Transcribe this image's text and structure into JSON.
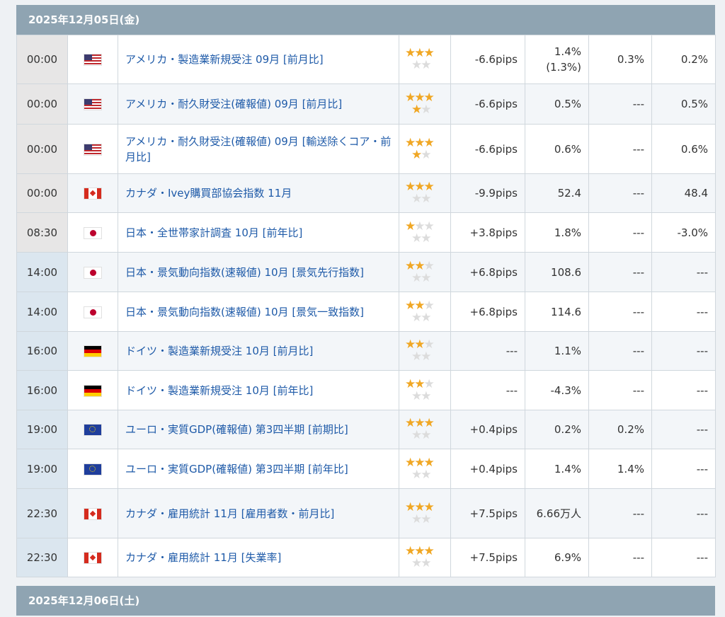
{
  "day1": {
    "date_label": "2025年12月05日(金)",
    "events": [
      {
        "time": "00:00",
        "country": "us",
        "title": "アメリカ・製造業新規受注 09月 [前月比]",
        "importance": 3,
        "pips": "-6.6pips",
        "previous": "1.4%",
        "previous_revised": "(1.3%)",
        "forecast": "0.3%",
        "actual": "0.2%",
        "state": "past"
      },
      {
        "time": "00:00",
        "country": "us",
        "title": "アメリカ・耐久財受注(確報値) 09月 [前月比]",
        "importance": 4,
        "pips": "-6.6pips",
        "previous": "0.5%",
        "previous_revised": "",
        "forecast": "---",
        "actual": "0.5%",
        "state": "past"
      },
      {
        "time": "00:00",
        "country": "us",
        "title": "アメリカ・耐久財受注(確報値) 09月 [輸送除くコア・前月比]",
        "importance": 4,
        "pips": "-6.6pips",
        "previous": "0.6%",
        "previous_revised": "",
        "forecast": "---",
        "actual": "0.6%",
        "state": "past"
      },
      {
        "time": "00:00",
        "country": "ca",
        "title": "カナダ・Ivey購買部協会指数 11月",
        "importance": 3,
        "pips": "-9.9pips",
        "previous": "52.4",
        "previous_revised": "",
        "forecast": "---",
        "actual": "48.4",
        "state": "past"
      },
      {
        "time": "08:30",
        "country": "jp",
        "title": "日本・全世帯家計調査 10月 [前年比]",
        "importance": 1,
        "pips": "+3.8pips",
        "previous": "1.8%",
        "previous_revised": "",
        "forecast": "---",
        "actual": "-3.0%",
        "state": "past"
      },
      {
        "time": "14:00",
        "country": "jp",
        "title": "日本・景気動向指数(速報値) 10月 [景気先行指数]",
        "importance": 2,
        "pips": "+6.8pips",
        "previous": "108.6",
        "previous_revised": "",
        "forecast": "---",
        "actual": "---",
        "state": "future"
      },
      {
        "time": "14:00",
        "country": "jp",
        "title": "日本・景気動向指数(速報値) 10月 [景気一致指数]",
        "importance": 2,
        "pips": "+6.8pips",
        "previous": "114.6",
        "previous_revised": "",
        "forecast": "---",
        "actual": "---",
        "state": "future"
      },
      {
        "time": "16:00",
        "country": "de",
        "title": "ドイツ・製造業新規受注 10月 [前月比]",
        "importance": 2,
        "pips": "---",
        "previous": "1.1%",
        "previous_revised": "",
        "forecast": "---",
        "actual": "---",
        "state": "future"
      },
      {
        "time": "16:00",
        "country": "de",
        "title": "ドイツ・製造業新規受注 10月 [前年比]",
        "importance": 2,
        "pips": "---",
        "previous": "-4.3%",
        "previous_revised": "",
        "forecast": "---",
        "actual": "---",
        "state": "future"
      },
      {
        "time": "19:00",
        "country": "eu",
        "title": "ユーロ・実質GDP(確報値) 第3四半期 [前期比]",
        "importance": 3,
        "pips": "+0.4pips",
        "previous": "0.2%",
        "previous_revised": "",
        "forecast": "0.2%",
        "actual": "---",
        "state": "future"
      },
      {
        "time": "19:00",
        "country": "eu",
        "title": "ユーロ・実質GDP(確報値) 第3四半期 [前年比]",
        "importance": 3,
        "pips": "+0.4pips",
        "previous": "1.4%",
        "previous_revised": "",
        "forecast": "1.4%",
        "actual": "---",
        "state": "future"
      },
      {
        "time": "22:30",
        "country": "ca",
        "title": "カナダ・雇用統計 11月 [雇用者数・前月比]",
        "importance": 3,
        "pips": "+7.5pips",
        "previous": "6.66万人",
        "previous_revised": "",
        "forecast": "---",
        "actual": "---",
        "state": "future"
      },
      {
        "time": "22:30",
        "country": "ca",
        "title": "カナダ・雇用統計 11月 [失業率]",
        "importance": 3,
        "pips": "+7.5pips",
        "previous": "6.9%",
        "previous_revised": "",
        "forecast": "---",
        "actual": "---",
        "state": "future"
      }
    ]
  },
  "day2": {
    "date_label": "2025年12月06日(土)"
  }
}
